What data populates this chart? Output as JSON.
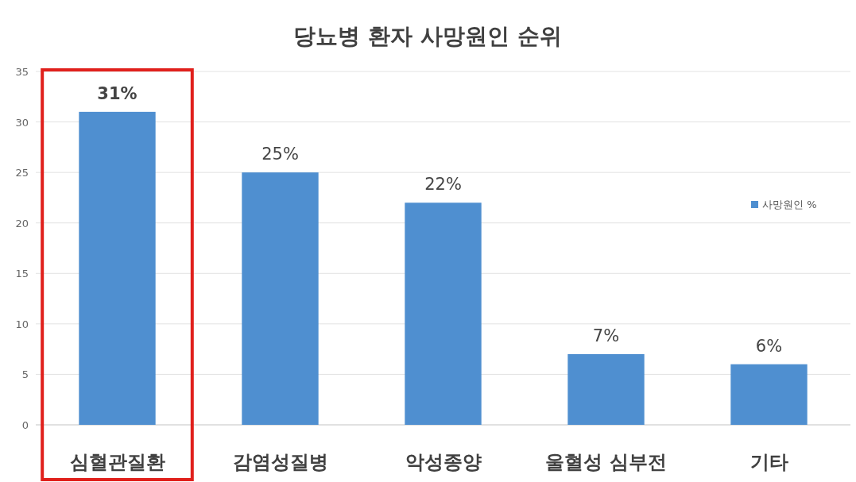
{
  "chart_data": {
    "type": "bar",
    "title": "당뇨병 환자 사망원인 순위",
    "categories": [
      "심혈관질환",
      "감염성질병",
      "악성종양",
      "울혈성 심부전",
      "기타"
    ],
    "series": [
      {
        "name": "사망원인 %",
        "color": "#4f8fd0",
        "values": [
          31,
          25,
          22,
          7,
          6
        ],
        "value_labels": [
          "31%",
          "25%",
          "22%",
          "7%",
          "6%"
        ]
      }
    ],
    "ylim": [
      0,
      35
    ],
    "yticks": [
      0,
      5,
      10,
      15,
      20,
      25,
      30,
      35
    ],
    "grid": "y",
    "legend": "right"
  }
}
